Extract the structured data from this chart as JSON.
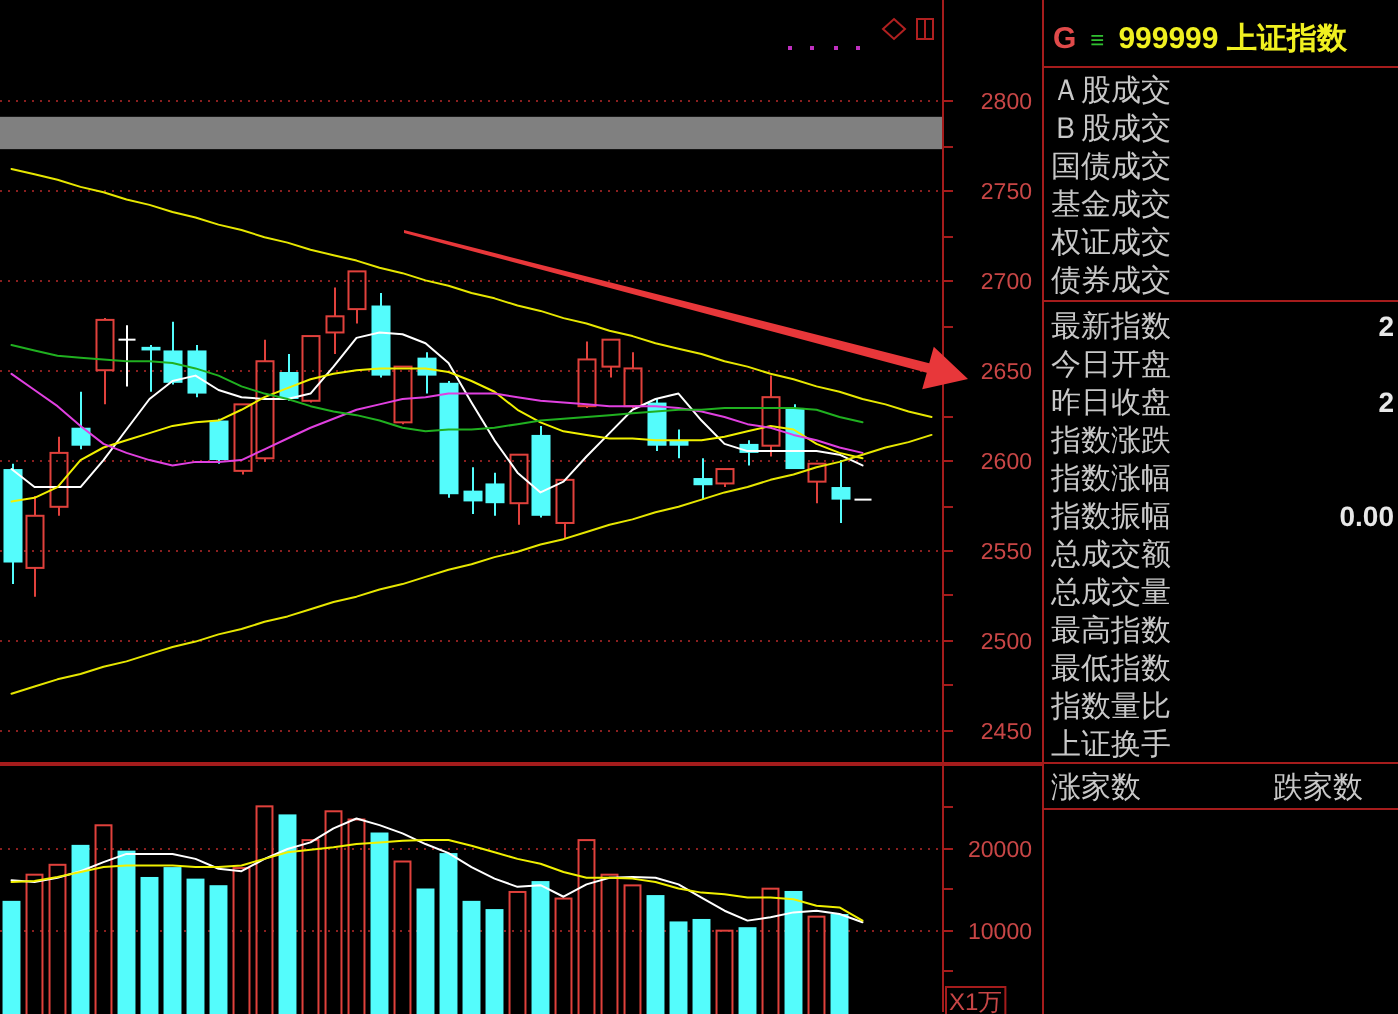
{
  "chart_data": [
    {
      "type": "candlestick",
      "categories": [
        null,
        null,
        null,
        null,
        null,
        null,
        null,
        null,
        null,
        null,
        null,
        null,
        null,
        null,
        null,
        null,
        null,
        null,
        null,
        null,
        null,
        null,
        null,
        null,
        null,
        null,
        null,
        null,
        null,
        null,
        null,
        null,
        null,
        null,
        null,
        null,
        null,
        null,
        null,
        null,
        null
      ],
      "ylim": [
        2432,
        2856
      ],
      "yticks": [
        2450,
        {
          "value": 2475,
          "label": null
        },
        2500,
        {
          "value": 2525,
          "label": null
        },
        2550,
        {
          "value": 2575,
          "label": null
        },
        2600,
        {
          "value": 2625,
          "label": null
        },
        2650,
        {
          "value": 2675,
          "label": null
        },
        2700,
        {
          "value": 2725,
          "label": null
        },
        2750,
        {
          "value": 2775,
          "label": null
        },
        2800
      ],
      "grid": "y",
      "bands": [
        {
          "axis": "y",
          "from": 2773,
          "to": 2791,
          "color": "#808080"
        }
      ],
      "ohlc": [
        [
          2595,
          2598,
          2531,
          2543
        ],
        [
          2540,
          2580,
          2524,
          2569
        ],
        [
          2574,
          2613,
          2569,
          2604
        ],
        [
          2618,
          2638,
          2606,
          2608
        ],
        [
          2650,
          2679,
          2631,
          2678
        ],
        [
          2667,
          2675,
          2641,
          2667
        ],
        [
          2663,
          2664,
          2638,
          2661
        ],
        [
          2661,
          2677,
          2642,
          2643
        ],
        [
          2661,
          2664,
          2635,
          2637
        ],
        [
          2622,
          2623,
          2598,
          2600
        ],
        [
          2594,
          2631,
          2592,
          2631
        ],
        [
          2601,
          2667,
          2599,
          2655
        ],
        [
          2649,
          2659,
          2633,
          2634
        ],
        [
          2633,
          2669,
          2632,
          2669
        ],
        [
          2671,
          2696,
          2659,
          2680
        ],
        [
          2684,
          2705,
          2676,
          2705
        ],
        [
          2686,
          2693,
          2646,
          2647
        ],
        [
          2621,
          2652,
          2620,
          2652
        ],
        [
          2657,
          2660,
          2637,
          2647
        ],
        [
          2643,
          2644,
          2579,
          2581
        ],
        [
          2583,
          2596,
          2570,
          2577
        ],
        [
          2587,
          2593,
          2569,
          2576
        ],
        [
          2576,
          2603,
          2564,
          2603
        ],
        [
          2614,
          2619,
          2568,
          2569
        ],
        [
          2565,
          2589,
          2556,
          2589
        ],
        [
          2630,
          2666,
          2629,
          2656
        ],
        [
          2652,
          2667,
          2646,
          2667
        ],
        [
          2630,
          2660,
          2629,
          2651
        ],
        [
          2632,
          2634,
          2605,
          2608
        ],
        [
          2611,
          2617,
          2601,
          2608
        ],
        [
          2590,
          2601,
          2578,
          2586
        ],
        [
          2587,
          2595,
          2585,
          2595
        ],
        [
          2609,
          2611,
          2597,
          2604
        ],
        [
          2608,
          2647,
          2602,
          2635
        ],
        [
          2629,
          2631,
          2595,
          2595
        ],
        [
          2588,
          2598,
          2576,
          2598
        ],
        [
          2585,
          2600,
          2565,
          2578
        ],
        [
          2578,
          2578,
          2578,
          2578
        ],
        null,
        null,
        null
      ],
      "colors": [
        "#54fcfc",
        "#e0413c",
        "#e0413c",
        "#54fcfc",
        "#e0413c",
        "#ffffff",
        "#54fcfc",
        "#54fcfc",
        "#54fcfc",
        "#54fcfc",
        "#e0413c",
        "#e0413c",
        "#54fcfc",
        "#e0413c",
        "#e0413c",
        "#e0413c",
        "#54fcfc",
        "#e0413c",
        "#54fcfc",
        "#54fcfc",
        "#54fcfc",
        "#54fcfc",
        "#e0413c",
        "#54fcfc",
        "#e0413c",
        "#e0413c",
        "#e0413c",
        "#e0413c",
        "#54fcfc",
        "#54fcfc",
        "#54fcfc",
        "#e0413c",
        "#54fcfc",
        "#e0413c",
        "#54fcfc",
        "#e0413c",
        "#54fcfc",
        "#ffffff",
        null,
        null,
        null
      ],
      "series": [
        {
          "type": "line",
          "color": "#ffffff",
          "values": [
            2595,
            2585,
            2585,
            2585,
            2600,
            2617,
            2634,
            2644,
            2647,
            2639,
            2635,
            2634,
            2634,
            2637,
            2652,
            2668,
            2671,
            2670,
            2665,
            2654,
            2632,
            2611,
            2593,
            2582,
            2588,
            2602,
            2615,
            2628,
            2634,
            2637,
            2622,
            2609,
            2605,
            2605,
            2605,
            2605,
            2603,
            2597,
            null,
            null,
            null
          ]
        },
        {
          "type": "line",
          "color": "#f0f000",
          "values": [
            2577,
            2579,
            2585,
            2600,
            2607,
            2611,
            2615,
            2619,
            2621,
            2622,
            2628,
            2635,
            2640,
            2645,
            2648,
            2650,
            2651,
            2651,
            2651,
            2649,
            2644,
            2638,
            2628,
            2621,
            2616,
            2614,
            2612,
            2612,
            2611,
            2611,
            2611,
            2613,
            2616,
            2619,
            2617,
            2609,
            2604,
            2601,
            null,
            null,
            null
          ]
        },
        {
          "type": "line",
          "color": "#e040e0",
          "values": [
            2648,
            2639,
            2630,
            2619,
            2609,
            2604,
            2600,
            2597,
            2599,
            2599,
            2600,
            2606,
            2612,
            2618,
            2623,
            2628,
            2631,
            2634,
            2635,
            2637,
            2637,
            2637,
            2635,
            2633,
            2632,
            2631,
            2630,
            2630,
            2630,
            2629,
            2627,
            2624,
            2620,
            2618,
            2614,
            2611,
            2607,
            2604,
            null,
            null,
            null
          ]
        },
        {
          "type": "line",
          "color": "#20b020",
          "values": [
            2664,
            2661,
            2658,
            2657,
            2656,
            2655,
            2655,
            2654,
            2651,
            2647,
            2641,
            2637,
            2634,
            2630,
            2627,
            2625,
            2622,
            2618,
            2616,
            2617,
            2617,
            2618,
            2620,
            2622,
            2623,
            2624,
            2625,
            2626,
            2627,
            2628,
            2628,
            2629,
            2629,
            2629,
            2629,
            2628,
            2624,
            2621,
            null,
            null,
            null
          ]
        },
        {
          "type": "line",
          "color": "#e6e600",
          "values": [
            2762,
            2759,
            2756,
            2752,
            2749,
            2745,
            2742,
            2738,
            2735,
            2731,
            2728,
            2724,
            2721,
            2717,
            2714,
            2711,
            2707,
            2704,
            2700,
            2697,
            2693,
            2690,
            2686,
            2683,
            2679,
            2676,
            2672,
            2669,
            2665,
            2662,
            2659,
            2655,
            2652,
            2648,
            2645,
            2641,
            2638,
            2634,
            2631,
            2627,
            2624
          ]
        },
        {
          "type": "line",
          "color": "#e6e600",
          "values": [
            2470,
            2474,
            2478,
            2481,
            2485,
            2488,
            2492,
            2496,
            2499,
            2503,
            2506,
            2510,
            2513,
            2517,
            2521,
            2524,
            2528,
            2531,
            2535,
            2539,
            2542,
            2546,
            2549,
            2553,
            2556,
            2560,
            2564,
            2567,
            2571,
            2574,
            2578,
            2582,
            2585,
            2589,
            2592,
            2596,
            2599,
            2603,
            2607,
            2610,
            2614
          ]
        }
      ]
    },
    {
      "type": "bar",
      "categories": [
        null,
        null,
        null,
        null,
        null,
        null,
        null,
        null,
        null,
        null,
        null,
        null,
        null,
        null,
        null,
        null,
        null,
        null,
        null,
        null,
        null,
        null,
        null,
        null,
        null,
        null,
        null,
        null,
        null,
        null,
        null,
        null,
        null,
        null,
        null,
        null,
        null,
        null,
        null,
        null,
        null
      ],
      "ylim": [
        0,
        30000
      ],
      "yticks": [
        {
          "value": 5000,
          "label": null
        },
        10000,
        {
          "value": 15000,
          "label": null
        },
        20000,
        {
          "value": 25000,
          "label": null
        }
      ],
      "ylabel": "X1万",
      "grid": "y",
      "values": [
        13500,
        16800,
        18000,
        20300,
        22800,
        19600,
        16400,
        17600,
        16200,
        15400,
        17600,
        25100,
        24000,
        21000,
        24500,
        23500,
        21800,
        18400,
        15000,
        19300,
        13500,
        12500,
        14700,
        15900,
        13900,
        21000,
        16800,
        15500,
        14200,
        11000,
        11300,
        10000,
        10300,
        15100,
        14700,
        11700,
        11900,
        null,
        null,
        null,
        null
      ],
      "colors": [
        "#54fcfc",
        "#e0413c",
        "#e0413c",
        "#54fcfc",
        "#e0413c",
        "#54fcfc",
        "#54fcfc",
        "#54fcfc",
        "#54fcfc",
        "#54fcfc",
        "#e0413c",
        "#e0413c",
        "#54fcfc",
        "#e0413c",
        "#e0413c",
        "#e0413c",
        "#54fcfc",
        "#e0413c",
        "#54fcfc",
        "#54fcfc",
        "#54fcfc",
        "#54fcfc",
        "#e0413c",
        "#54fcfc",
        "#e0413c",
        "#e0413c",
        "#e0413c",
        "#e0413c",
        "#54fcfc",
        "#54fcfc",
        "#54fcfc",
        "#e0413c",
        "#54fcfc",
        "#e0413c",
        "#54fcfc",
        "#e0413c",
        "#54fcfc",
        null,
        null,
        null,
        null
      ],
      "series": [
        {
          "type": "line",
          "color": "#ffffff",
          "values": [
            16000,
            15800,
            16300,
            17100,
            18200,
            19200,
            19200,
            19200,
            18600,
            17400,
            17100,
            18600,
            19800,
            20600,
            22300,
            23500,
            22700,
            21700,
            20400,
            19300,
            17600,
            16200,
            15200,
            15400,
            14000,
            15500,
            16300,
            16400,
            16300,
            15500,
            13900,
            12300,
            11100,
            11500,
            12100,
            12300,
            11900,
            10900,
            null,
            null,
            null
          ]
        },
        {
          "type": "line",
          "color": "#f0f000",
          "values": [
            15800,
            15900,
            16400,
            17000,
            17600,
            17800,
            17800,
            17800,
            17600,
            17600,
            17800,
            18600,
            19400,
            19700,
            20000,
            20400,
            20600,
            20800,
            20900,
            20900,
            20200,
            19400,
            18600,
            18000,
            17000,
            16300,
            16300,
            16200,
            15800,
            15000,
            14500,
            14300,
            13900,
            13900,
            13700,
            12900,
            12700,
            11100,
            null,
            null,
            null
          ]
        }
      ]
    },
    {
      "type": "other",
      "title": "999999 上证指数",
      "annotations": [
        "G",
        "≡",
        "涨家数",
        "跌家数"
      ],
      "categories": [
        "Ａ股成交",
        "Ｂ股成交",
        "国债成交",
        "基金成交",
        "权证成交",
        "债券成交",
        "最新指数",
        "今日开盘",
        "昨日收盘",
        "指数涨跌",
        "指数涨幅",
        "指数振幅",
        "总成交额",
        "总成交量",
        "最高指数",
        "最低指数",
        "指数量比",
        "上证换手"
      ],
      "value_labels": [
        null,
        null,
        null,
        null,
        null,
        null,
        "2",
        null,
        "2",
        null,
        null,
        "0.00",
        null,
        null,
        null,
        null,
        null,
        null
      ]
    }
  ]
}
